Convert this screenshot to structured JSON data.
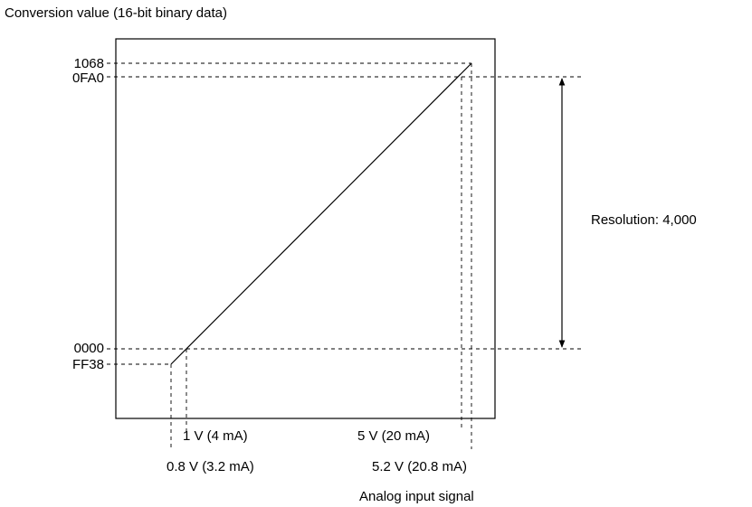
{
  "title": "Conversion value (16-bit binary data)",
  "y_ticks": {
    "max_hex": "1068",
    "full_scale_hex": "0FA0",
    "zero_hex": "0000",
    "min_hex": "FF38"
  },
  "x_ticks": {
    "zero_point": "1 V (4 mA)",
    "full_scale_point": "5 V (20 mA)",
    "min_point": "0.8 V (3.2 mA)",
    "max_point": "5.2 V (20.8 mA)"
  },
  "x_axis_label": "Analog input signal",
  "resolution_label": "Resolution: 4,000"
}
